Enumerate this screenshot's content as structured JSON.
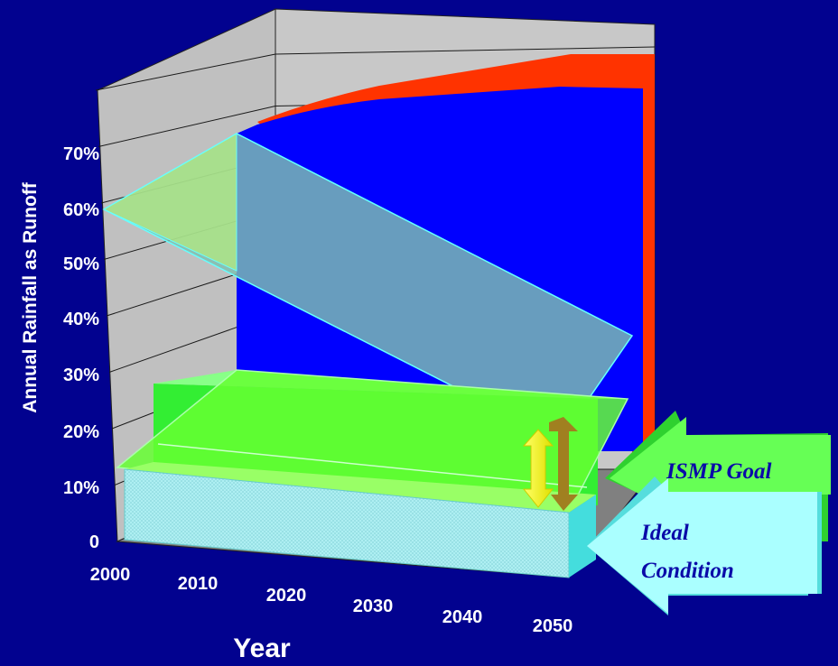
{
  "chart_data": {
    "type": "area",
    "title": "",
    "xlabel": "Year",
    "ylabel": "Annual Rainfall as Runoff",
    "x_ticks": [
      "2000",
      "2010",
      "2020",
      "2030",
      "2040",
      "2050"
    ],
    "y_ticks": [
      "0",
      "10%",
      "20%",
      "30%",
      "40%",
      "50%",
      "60%",
      "70%"
    ],
    "ylim": [
      0,
      80
    ],
    "grid": true,
    "series": [
      {
        "name": "",
        "color": "#ff3300",
        "x": [
          2010,
          2020,
          2030,
          2040,
          2050
        ],
        "values": [
          75,
          77,
          79,
          80,
          80
        ]
      },
      {
        "name": "",
        "color": "#0000ff",
        "x": [
          2010,
          2020,
          2030,
          2040,
          2050
        ],
        "values": [
          74,
          75,
          76,
          77,
          77
        ]
      },
      {
        "name": "",
        "color": "#6ab0b8",
        "x": [
          2000,
          2050
        ],
        "values": [
          60,
          25
        ]
      },
      {
        "name": "ISMP Goal",
        "color": "#55ff55",
        "x": [
          2000,
          2050
        ],
        "values": [
          18,
          18
        ]
      },
      {
        "name": "Ideal Condition",
        "color": "#99ffff",
        "x": [
          2000,
          2050
        ],
        "values": [
          10,
          10
        ]
      }
    ],
    "annotations": [
      {
        "text": "ISMP Goal",
        "color": "#55ff55"
      },
      {
        "text": "Ideal Condition",
        "color": "#99ffff"
      }
    ]
  },
  "icons": {
    "gap_arrow": "double-headed-arrow-icon"
  }
}
